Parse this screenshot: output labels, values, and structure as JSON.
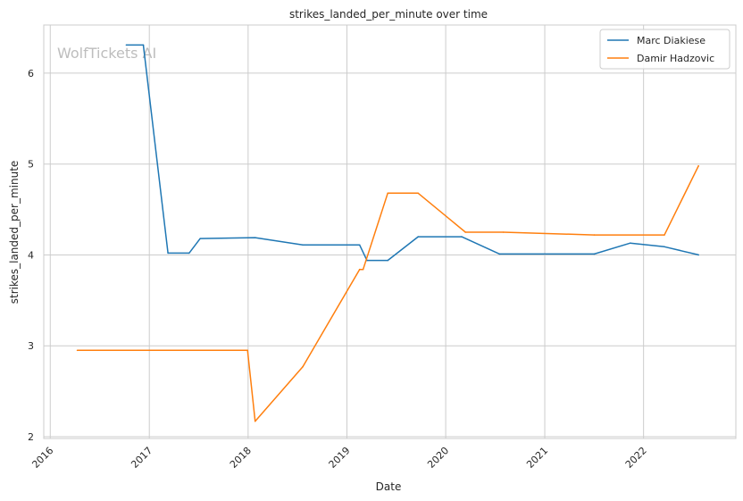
{
  "chart_data": {
    "type": "line",
    "title": "strikes_landed_per_minute over time",
    "xlabel": "Date",
    "ylabel": "strikes_landed_per_minute",
    "watermark": "WolfTickets AI",
    "x_ticks": [
      "2016",
      "2017",
      "2018",
      "2019",
      "2020",
      "2021",
      "2022"
    ],
    "y_ticks": [
      "2",
      "3",
      "4",
      "5",
      "6"
    ],
    "xlim": [
      "2015-12-08",
      "2022-12-08"
    ],
    "ylim": [
      1.98,
      6.53
    ],
    "grid": true,
    "legend_position": "top-right",
    "series": [
      {
        "name": "Marc Diakiese",
        "color": "#1f77b4",
        "points": [
          [
            "2016-10-08",
            6.31
          ],
          [
            "2016-12-10",
            6.31
          ],
          [
            "2017-03-11",
            4.02
          ],
          [
            "2017-05-28",
            4.02
          ],
          [
            "2017-07-08",
            4.18
          ],
          [
            "2018-01-27",
            4.19
          ],
          [
            "2018-07-22",
            4.11
          ],
          [
            "2019-02-17",
            4.11
          ],
          [
            "2019-03-16",
            3.94
          ],
          [
            "2019-06-01",
            3.94
          ],
          [
            "2019-09-21",
            4.2
          ],
          [
            "2020-02-29",
            4.2
          ],
          [
            "2020-07-18",
            4.01
          ],
          [
            "2021-07-03",
            4.01
          ],
          [
            "2021-11-13",
            4.13
          ],
          [
            "2022-03-19",
            4.09
          ],
          [
            "2022-07-23",
            4.0
          ]
        ]
      },
      {
        "name": "Damir Hadzovic",
        "color": "#ff7f0e",
        "points": [
          [
            "2016-04-10",
            2.95
          ],
          [
            "2017-12-30",
            2.95
          ],
          [
            "2018-01-27",
            2.17
          ],
          [
            "2018-07-22",
            2.77
          ],
          [
            "2019-02-17",
            3.84
          ],
          [
            "2019-03-02",
            3.84
          ],
          [
            "2019-06-01",
            4.68
          ],
          [
            "2019-09-21",
            4.68
          ],
          [
            "2020-03-14",
            4.25
          ],
          [
            "2020-08-01",
            4.25
          ],
          [
            "2021-07-03",
            4.22
          ],
          [
            "2022-03-19",
            4.22
          ],
          [
            "2022-07-23",
            4.98
          ]
        ]
      }
    ]
  }
}
